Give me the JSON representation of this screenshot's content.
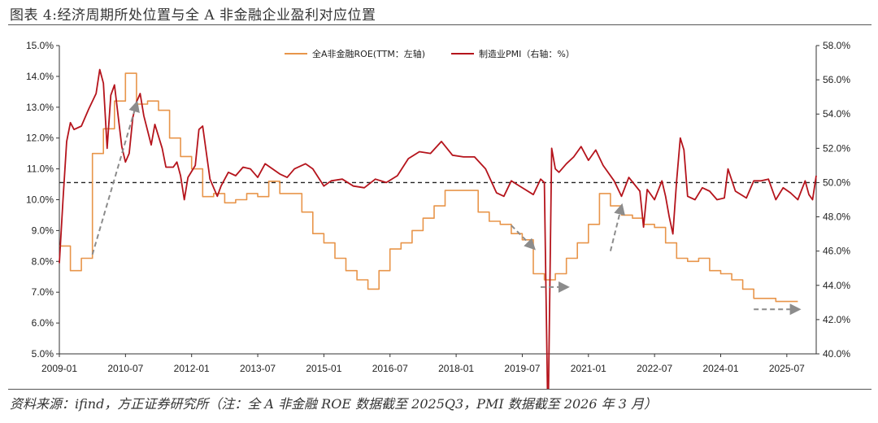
{
  "header": {
    "title": "图表 4:经济周期所处位置与全 A 非金融企业盈利对应位置"
  },
  "footer": {
    "source": "资料来源：ifind，方正证券研究所（注：全 A 非金融 ROE 数据截至 2025Q3，PMI 数据截至 2026 年 3 月）"
  },
  "chart_data": {
    "type": "line",
    "title": "图表 4:经济周期所处位置与全 A 非金融企业盈利对应位置",
    "x_range": [
      "2009-01",
      "2026-03"
    ],
    "x_tick_labels": [
      "2009-01",
      "2010-07",
      "2012-01",
      "2013-07",
      "2015-01",
      "2016-07",
      "2018-01",
      "2019-07",
      "2021-01",
      "2022-07",
      "2024-01",
      "2025-07"
    ],
    "y_left": {
      "min": 5.0,
      "max": 15.0,
      "tick_labels": [
        "5.0%",
        "6.0%",
        "7.0%",
        "8.0%",
        "9.0%",
        "10.0%",
        "11.0%",
        "12.0%",
        "13.0%",
        "14.0%",
        "15.0%"
      ]
    },
    "y_right": {
      "min": 40.0,
      "max": 58.0,
      "tick_labels": [
        "40.0%",
        "42.0%",
        "44.0%",
        "46.0%",
        "48.0%",
        "50.0%",
        "52.0%",
        "54.0%",
        "56.0%",
        "58.0%"
      ]
    },
    "reference_line": {
      "axis": "right",
      "value": 50.0,
      "style": "dashed"
    },
    "legend_position": "top-center",
    "colors": {
      "roe": "#E8954A",
      "pmi": "#B5141C",
      "reference": "#222222",
      "arrow": "#8C8C8C"
    },
    "series": [
      {
        "name": "全A非金融ROE(TTM：左轴)",
        "axis": "left",
        "step": true,
        "x": [
          "2009-01",
          "2009-04",
          "2009-07",
          "2009-10",
          "2010-01",
          "2010-04",
          "2010-07",
          "2010-10",
          "2011-01",
          "2011-04",
          "2011-07",
          "2011-10",
          "2012-01",
          "2012-04",
          "2012-07",
          "2012-10",
          "2013-01",
          "2013-04",
          "2013-07",
          "2013-10",
          "2014-01",
          "2014-04",
          "2014-07",
          "2014-10",
          "2015-01",
          "2015-04",
          "2015-07",
          "2015-10",
          "2016-01",
          "2016-04",
          "2016-07",
          "2016-10",
          "2017-01",
          "2017-04",
          "2017-07",
          "2017-10",
          "2018-01",
          "2018-04",
          "2018-07",
          "2018-10",
          "2019-01",
          "2019-04",
          "2019-07",
          "2019-10",
          "2020-01",
          "2020-04",
          "2020-07",
          "2020-10",
          "2021-01",
          "2021-04",
          "2021-07",
          "2021-10",
          "2022-01",
          "2022-04",
          "2022-07",
          "2022-10",
          "2023-01",
          "2023-04",
          "2023-07",
          "2023-10",
          "2024-01",
          "2024-04",
          "2024-07",
          "2024-10",
          "2025-01",
          "2025-04",
          "2025-07"
        ],
        "values": [
          8.5,
          7.7,
          8.1,
          11.5,
          12.3,
          13.2,
          14.1,
          13.1,
          13.2,
          12.9,
          12.0,
          11.4,
          11.0,
          10.1,
          10.2,
          9.9,
          10.0,
          10.2,
          10.1,
          10.6,
          10.2,
          10.2,
          9.6,
          8.9,
          8.6,
          8.1,
          7.7,
          7.4,
          7.1,
          7.7,
          8.4,
          8.6,
          9.0,
          9.4,
          9.8,
          10.3,
          10.3,
          10.3,
          9.6,
          9.3,
          9.2,
          8.9,
          8.7,
          7.6,
          7.4,
          7.6,
          8.1,
          8.6,
          9.2,
          10.2,
          9.8,
          9.5,
          9.4,
          9.2,
          9.1,
          8.6,
          8.1,
          8.0,
          8.1,
          7.7,
          7.6,
          7.4,
          7.1,
          6.8,
          6.8,
          6.7,
          6.7
        ]
      },
      {
        "name": "制造业PMI（右轴：%）",
        "axis": "right",
        "step": false,
        "x": [
          "2009-01",
          "2009-02",
          "2009-03",
          "2009-04",
          "2009-05",
          "2009-07",
          "2009-09",
          "2009-11",
          "2009-12",
          "2010-01",
          "2010-02",
          "2010-03",
          "2010-04",
          "2010-05",
          "2010-06",
          "2010-07",
          "2010-08",
          "2010-09",
          "2010-10",
          "2010-11",
          "2010-12",
          "2011-02",
          "2011-03",
          "2011-05",
          "2011-06",
          "2011-08",
          "2011-09",
          "2011-10",
          "2011-11",
          "2011-12",
          "2012-02",
          "2012-03",
          "2012-04",
          "2012-06",
          "2012-08",
          "2012-09",
          "2012-11",
          "2013-01",
          "2013-03",
          "2013-05",
          "2013-07",
          "2013-09",
          "2014-01",
          "2014-03",
          "2014-05",
          "2014-08",
          "2014-10",
          "2015-01",
          "2015-03",
          "2015-06",
          "2015-09",
          "2015-12",
          "2016-03",
          "2016-06",
          "2016-09",
          "2016-12",
          "2017-03",
          "2017-06",
          "2017-09",
          "2017-12",
          "2018-03",
          "2018-06",
          "2018-09",
          "2018-12",
          "2019-02",
          "2019-04",
          "2019-07",
          "2019-10",
          "2019-12",
          "2020-01",
          "2020-02",
          "2020-03",
          "2020-04",
          "2020-05",
          "2020-07",
          "2020-09",
          "2020-11",
          "2021-01",
          "2021-03",
          "2021-05",
          "2021-08",
          "2021-10",
          "2021-12",
          "2022-03",
          "2022-04",
          "2022-05",
          "2022-07",
          "2022-09",
          "2022-10",
          "2022-11",
          "2022-12",
          "2023-01",
          "2023-02",
          "2023-03",
          "2023-04",
          "2023-06",
          "2023-08",
          "2023-10",
          "2023-12",
          "2024-02",
          "2024-03",
          "2024-05",
          "2024-08",
          "2024-10",
          "2024-12",
          "2025-02",
          "2025-04",
          "2025-06",
          "2025-08",
          "2025-10",
          "2025-12",
          "2026-01",
          "2026-02",
          "2026-03"
        ],
        "values": [
          45.3,
          49.0,
          52.4,
          53.5,
          53.1,
          53.3,
          54.3,
          55.2,
          56.6,
          55.8,
          52.0,
          55.1,
          55.7,
          53.9,
          52.1,
          51.2,
          51.7,
          53.8,
          54.7,
          55.2,
          53.9,
          52.2,
          53.4,
          52.0,
          50.9,
          50.9,
          51.2,
          50.4,
          49.0,
          50.3,
          51.0,
          53.1,
          53.3,
          50.2,
          49.2,
          49.8,
          50.6,
          50.4,
          50.9,
          50.8,
          50.3,
          51.1,
          50.5,
          50.3,
          50.8,
          51.1,
          50.8,
          49.8,
          50.1,
          50.2,
          49.8,
          49.7,
          50.2,
          50.0,
          50.4,
          51.4,
          51.8,
          51.7,
          52.4,
          51.6,
          51.5,
          51.5,
          50.8,
          49.4,
          49.2,
          50.1,
          49.7,
          49.3,
          50.2,
          50.0,
          35.7,
          52.0,
          50.8,
          50.6,
          51.1,
          51.5,
          52.1,
          51.3,
          51.9,
          51.0,
          50.1,
          49.2,
          50.3,
          49.5,
          47.4,
          49.6,
          49.0,
          50.1,
          49.2,
          48.0,
          47.0,
          50.1,
          52.6,
          51.9,
          49.2,
          49.0,
          49.7,
          49.5,
          49.0,
          49.1,
          50.8,
          49.5,
          49.1,
          50.1,
          50.1,
          50.2,
          49.0,
          49.7,
          49.4,
          49.0,
          50.1,
          49.3,
          49.0,
          50.4
        ]
      }
    ],
    "annotations": [
      {
        "type": "arrow",
        "from": [
          "2009-10",
          45.8
        ],
        "to": [
          "2010-10",
          54.6
        ],
        "axis": "right"
      },
      {
        "type": "arrow",
        "from": [
          "2019-04",
          47.5
        ],
        "to": [
          "2019-10",
          46.2
        ],
        "axis": "right"
      },
      {
        "type": "arrow",
        "from": [
          "2019-12",
          43.9
        ],
        "to": [
          "2020-07",
          43.9
        ],
        "axis": "right"
      },
      {
        "type": "arrow",
        "from": [
          "2021-07",
          46.0
        ],
        "to": [
          "2021-10",
          48.6
        ],
        "axis": "right"
      },
      {
        "type": "arrow",
        "from": [
          "2024-10",
          42.6
        ],
        "to": [
          "2025-10",
          42.6
        ],
        "axis": "right"
      }
    ]
  }
}
